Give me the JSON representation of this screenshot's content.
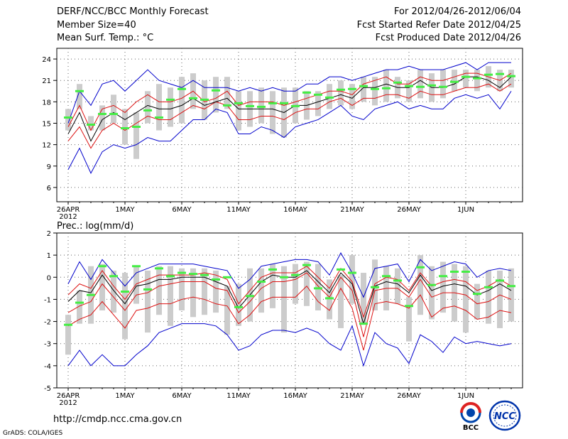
{
  "header": {
    "left": [
      "DERF/NCC/BCC Monthly Forecast",
      "Member Size=40",
      "Mean Surf. Temp.: °C"
    ],
    "right": [
      "For 2012/04/26-2012/06/04",
      "Fcst Started Refer Date 2012/04/25",
      "Fcst Produced Date 2012/04/26"
    ]
  },
  "footer": {
    "url": "http://cmdp.ncc.cma.gov.cn",
    "credit": "GrADS: COLA/IGES"
  },
  "logos": {
    "left_text": "BCC",
    "right_text": "NCC"
  },
  "colors": {
    "ensemble": "#000000",
    "spread": "#dd1111",
    "extreme": "#0000cc",
    "box": "#cccccc",
    "obs": "#44ee44",
    "grid": "#666666"
  },
  "chart_data": [
    {
      "type": "line",
      "title": "Mean Surf. Temp.: °C",
      "xlabel": "",
      "ylabel": "°C",
      "ylim": [
        4,
        25.5
      ],
      "yticks": [
        6,
        9,
        12,
        15,
        18,
        21,
        24
      ],
      "xticks": [
        {
          "day": 1,
          "label": "26APR",
          "sub": "2012"
        },
        {
          "day": 6,
          "label": "1MAY"
        },
        {
          "day": 11,
          "label": "6MAY"
        },
        {
          "day": 16,
          "label": "11MAY"
        },
        {
          "day": 21,
          "label": "16MAY"
        },
        {
          "day": 26,
          "label": "21MAY"
        },
        {
          "day": 31,
          "label": "26MAY"
        },
        {
          "day": 36,
          "label": "1JUN"
        }
      ],
      "days": [
        1,
        2,
        3,
        4,
        5,
        6,
        7,
        8,
        9,
        10,
        11,
        12,
        13,
        14,
        15,
        16,
        17,
        18,
        19,
        20,
        21,
        22,
        23,
        24,
        25,
        26,
        27,
        28,
        29,
        30,
        31,
        32,
        33,
        34,
        35,
        36,
        37,
        38,
        39,
        40
      ],
      "series": [
        {
          "name": "max",
          "role": "extreme",
          "values": [
            8.5,
            11.5,
            8,
            11,
            12,
            11.5,
            12,
            13,
            12.5,
            12.5,
            14,
            15.5,
            15.5,
            17,
            16.5,
            13.5,
            13.5,
            14.5,
            14,
            13,
            14.5,
            15,
            15.5,
            16.5,
            17.5,
            16,
            15.5,
            17,
            17.5,
            18,
            17,
            17.5,
            17,
            17,
            18.5,
            19,
            18.5,
            19,
            17,
            19.5
          ]
        },
        {
          "name": "p10",
          "role": "spread",
          "values": [
            12.5,
            14.5,
            11.5,
            14,
            15,
            14,
            15,
            16,
            15.5,
            15.5,
            16.5,
            17.5,
            17,
            18,
            17.5,
            15.5,
            15.5,
            16,
            16,
            15.5,
            16.5,
            17,
            17,
            18,
            18.5,
            17.5,
            18.5,
            18.5,
            19,
            19,
            18.5,
            19.5,
            19,
            19,
            19.5,
            20,
            20,
            20.5,
            19.5,
            20.5
          ]
        },
        {
          "name": "mean",
          "role": "ensemble",
          "values": [
            13.5,
            16.5,
            12.5,
            15.5,
            16.5,
            15.5,
            16.5,
            17.5,
            17,
            17,
            17.5,
            18.5,
            17.5,
            18,
            18.5,
            17,
            17,
            17,
            17,
            16.5,
            17.5,
            17.5,
            18,
            18.5,
            19,
            18.5,
            20,
            20,
            20.5,
            20,
            20,
            21,
            20,
            20,
            20.5,
            21.5,
            21.5,
            21,
            20,
            21.5
          ]
        },
        {
          "name": "p90",
          "role": "spread",
          "values": [
            14.5,
            17.5,
            14,
            17,
            17.5,
            16.5,
            18,
            19,
            18,
            18,
            18.5,
            19.5,
            18,
            18.5,
            19.5,
            17.5,
            18,
            18,
            18,
            17.5,
            18,
            18.5,
            19,
            19.5,
            19.5,
            19,
            20.5,
            21,
            21.5,
            20.5,
            20.5,
            21.5,
            21,
            21,
            21.5,
            22,
            22,
            21.5,
            21,
            22
          ]
        },
        {
          "name": "min",
          "role": "extreme",
          "values": [
            15,
            19.5,
            17.5,
            20.5,
            21,
            19.5,
            21,
            22.5,
            21,
            20.5,
            20,
            21,
            20,
            20,
            20,
            19.5,
            20,
            19.5,
            20,
            19.5,
            19.5,
            20.5,
            20.5,
            21.5,
            21.5,
            21,
            21.5,
            22,
            22.5,
            22.5,
            23,
            22.5,
            22.5,
            22.5,
            23,
            23.5,
            22.5,
            23.5,
            23.5,
            23.5
          ]
        }
      ],
      "box_ranges": [
        [
          14,
          17
        ],
        [
          17,
          20.5
        ],
        [
          14,
          16
        ],
        [
          14,
          17.5
        ],
        [
          15,
          19
        ],
        [
          12,
          17
        ],
        [
          10,
          16.5
        ],
        [
          15,
          19.5
        ],
        [
          14,
          20.5
        ],
        [
          14.5,
          20
        ],
        [
          15,
          21.5
        ],
        [
          17,
          22
        ],
        [
          15.5,
          21
        ],
        [
          16.5,
          21.5
        ],
        [
          17,
          21.5
        ],
        [
          14,
          19.5
        ],
        [
          14.5,
          19.5
        ],
        [
          15,
          20
        ],
        [
          13.5,
          19.5
        ],
        [
          13,
          20
        ],
        [
          15,
          20
        ],
        [
          15.5,
          19.5
        ],
        [
          16,
          19.5
        ],
        [
          17,
          20.5
        ],
        [
          17.5,
          21
        ],
        [
          17,
          20.5
        ],
        [
          18,
          21.5
        ],
        [
          17.5,
          21.5
        ],
        [
          18,
          22.5
        ],
        [
          18.5,
          21.5
        ],
        [
          18,
          21
        ],
        [
          18.5,
          22.5
        ],
        [
          18,
          22
        ],
        [
          18.5,
          22.5
        ],
        [
          19.5,
          22.5
        ],
        [
          20,
          22.5
        ],
        [
          19.5,
          22.5
        ],
        [
          20,
          23
        ],
        [
          19.5,
          22.5
        ],
        [
          20,
          22.5
        ]
      ],
      "observed": [
        15.8,
        19.5,
        14.8,
        16.3,
        16.3,
        14.3,
        14.5,
        16.8,
        15.8,
        18.3,
        19.8,
        18.5,
        18.3,
        19.6,
        17.5,
        17.8,
        17.4,
        17.3,
        17.8,
        17.8,
        17.4,
        19.3,
        19.0,
        18.6,
        19.7,
        19.8,
        20.2,
        19.8,
        19.9,
        20.7,
        20.2,
        20.1,
        20.3,
        20.1,
        20.8,
        21.5,
        21.3,
        21.8,
        21.9,
        21.6
      ]
    },
    {
      "type": "line",
      "title": "Prec.: log(mm/d)",
      "xlabel": "",
      "ylabel": "log(mm/d)",
      "ylim": [
        -5,
        2
      ],
      "yticks": [
        -5,
        -4,
        -3,
        -2,
        -1,
        0,
        1,
        2
      ],
      "xticks": [
        {
          "day": 1,
          "label": "26APR",
          "sub": "2012"
        },
        {
          "day": 6,
          "label": "1MAY"
        },
        {
          "day": 11,
          "label": "6MAY"
        },
        {
          "day": 16,
          "label": "11MAY"
        },
        {
          "day": 21,
          "label": "16MAY"
        },
        {
          "day": 26,
          "label": "21MAY"
        },
        {
          "day": 31,
          "label": "26MAY"
        },
        {
          "day": 36,
          "label": "1JUN"
        }
      ],
      "days": [
        1,
        2,
        3,
        4,
        5,
        6,
        7,
        8,
        9,
        10,
        11,
        12,
        13,
        14,
        15,
        16,
        17,
        18,
        19,
        20,
        21,
        22,
        23,
        24,
        25,
        26,
        27,
        28,
        29,
        30,
        31,
        32,
        33,
        34,
        35,
        36,
        37,
        38,
        39,
        40
      ],
      "series": [
        {
          "name": "min",
          "role": "extreme",
          "values": [
            -4,
            -3.3,
            -4,
            -3.5,
            -4,
            -4,
            -3.5,
            -3.1,
            -2.5,
            -2.3,
            -2.1,
            -2.1,
            -2.1,
            -2.2,
            -2.6,
            -3.3,
            -3.1,
            -2.6,
            -2.4,
            -2.4,
            -2.5,
            -2.3,
            -2.5,
            -3,
            -3.3,
            -2.2,
            -4,
            -2.5,
            -3,
            -3.2,
            -3.9,
            -2.6,
            -2.9,
            -3.4,
            -2.7,
            -3,
            -2.9,
            -3,
            -3.1,
            -3
          ]
        },
        {
          "name": "p10",
          "role": "spread",
          "values": [
            -2.2,
            -1.9,
            -1.7,
            -1.1,
            -1.7,
            -2.3,
            -1.5,
            -1.4,
            -1.2,
            -1.2,
            -1,
            -0.9,
            -1,
            -1.2,
            -1.3,
            -2.1,
            -1.7,
            -1.1,
            -0.9,
            -0.9,
            -0.9,
            -0.4,
            -1.1,
            -1.5,
            -0.5,
            -1.4,
            -3.3,
            -1.2,
            -1.1,
            -1.2,
            -1.4,
            -0.8,
            -1.8,
            -1.4,
            -1.3,
            -1.5,
            -1.9,
            -1.8,
            -1.5,
            -1.6
          ]
        },
        {
          "name": "p25",
          "role": "spread",
          "values": [
            -1.6,
            -1.3,
            -1.1,
            -0.3,
            -0.9,
            -1.5,
            -0.8,
            -0.7,
            -0.4,
            -0.3,
            -0.2,
            -0.2,
            -0.2,
            -0.5,
            -0.6,
            -1.6,
            -1.1,
            -0.5,
            -0.2,
            -0.2,
            -0.1,
            0.2,
            -0.4,
            -0.9,
            0,
            -0.6,
            -2.7,
            -0.6,
            -0.5,
            -0.5,
            -0.9,
            -0.1,
            -0.9,
            -0.7,
            -0.7,
            -0.8,
            -1.2,
            -1.1,
            -0.8,
            -1
          ]
        },
        {
          "name": "mean",
          "role": "ensemble",
          "values": [
            -1.1,
            -0.6,
            -0.7,
            0.1,
            -0.6,
            -1.2,
            -0.4,
            -0.3,
            -0.1,
            -0.1,
            0,
            0,
            0,
            -0.2,
            -0.4,
            -1.4,
            -0.8,
            -0.2,
            0.1,
            0,
            0,
            0.3,
            -0.2,
            -0.7,
            0.2,
            -0.3,
            -2.1,
            -0.4,
            -0.2,
            -0.3,
            -0.7,
            0.1,
            -0.6,
            -0.4,
            -0.3,
            -0.4,
            -0.8,
            -0.6,
            -0.3,
            -0.6
          ]
        },
        {
          "name": "p75",
          "role": "spread",
          "values": [
            -0.8,
            -0.3,
            -0.5,
            0.3,
            -0.4,
            -1,
            -0.3,
            -0.1,
            0.1,
            0.1,
            0.1,
            0.1,
            0.2,
            0.1,
            -0.1,
            -1.2,
            -0.6,
            0,
            0.2,
            0.2,
            0.2,
            0.5,
            0,
            -0.5,
            0.4,
            -0.2,
            -1.8,
            -0.3,
            0,
            -0.1,
            -0.6,
            0.2,
            -0.4,
            -0.2,
            -0.1,
            -0.2,
            -0.6,
            -0.4,
            -0.1,
            -0.4
          ]
        },
        {
          "name": "max",
          "role": "extreme",
          "values": [
            -0.3,
            0.7,
            -0.1,
            0.8,
            0.2,
            -0.4,
            0.2,
            0.4,
            0.6,
            0.6,
            0.6,
            0.6,
            0.5,
            0.4,
            0.3,
            -0.5,
            -0.1,
            0.5,
            0.6,
            0.7,
            0.8,
            0.8,
            0.7,
            0.1,
            1.1,
            0.2,
            -0.9,
            0.4,
            0.5,
            0.6,
            -0.2,
            0.8,
            0.3,
            0.5,
            0.7,
            0.6,
            0,
            0.3,
            0.4,
            0.3
          ]
        }
      ],
      "box_ranges": [
        [
          -3.5,
          -1.7
        ],
        [
          -2.1,
          -0.6
        ],
        [
          -2.1,
          0.5
        ],
        [
          -1.5,
          0.6
        ],
        [
          -1.6,
          0.3
        ],
        [
          -2.8,
          0.2
        ],
        [
          -1.2,
          0.5
        ],
        [
          -2.5,
          0.3
        ],
        [
          -1.7,
          0.5
        ],
        [
          -2.2,
          0.5
        ],
        [
          -1.5,
          0.4
        ],
        [
          -1.8,
          0.4
        ],
        [
          -1.7,
          0.4
        ],
        [
          -1.6,
          0.3
        ],
        [
          -2.6,
          -0.4
        ],
        [
          -2.2,
          -0.3
        ],
        [
          -2,
          0.4
        ],
        [
          -1.6,
          0.4
        ],
        [
          -1.4,
          0.6
        ],
        [
          -2.5,
          0.5
        ],
        [
          -1.2,
          0.6
        ],
        [
          -1.3,
          0.7
        ],
        [
          -1.5,
          0.6
        ],
        [
          -1.9,
          -0.1
        ],
        [
          -2.3,
          0.1
        ],
        [
          -1.2,
          1
        ],
        [
          -2.1,
          0.2
        ],
        [
          -1.5,
          0.8
        ],
        [
          -1.5,
          0.5
        ],
        [
          -1.2,
          0.4
        ],
        [
          -2.9,
          -0.9
        ],
        [
          -1.7,
          1
        ],
        [
          -1.9,
          0.5
        ],
        [
          -1.6,
          0.7
        ],
        [
          -2,
          0.6
        ],
        [
          -2.5,
          0.5
        ],
        [
          -1.9,
          -0.3
        ],
        [
          -2.1,
          0.3
        ],
        [
          -2.3,
          0.3
        ],
        [
          -2,
          0.4
        ]
      ],
      "observed": [
        -2.15,
        -1.15,
        -0.8,
        0.5,
        0.05,
        -0.65,
        0.5,
        -0.55,
        0.4,
        0.05,
        0.2,
        0.15,
        0.1,
        -0.1,
        0,
        -1.35,
        -0.85,
        -0.2,
        0.35,
        0,
        0.1,
        0.55,
        -0.5,
        -0.95,
        0.35,
        0.2,
        -2.1,
        -0.45,
        0.05,
        -0.15,
        -1.3,
        0.45,
        -0.35,
        0.05,
        0.25,
        0.25,
        -0.75,
        -0.45,
        -0.15,
        -0.4
      ]
    }
  ]
}
